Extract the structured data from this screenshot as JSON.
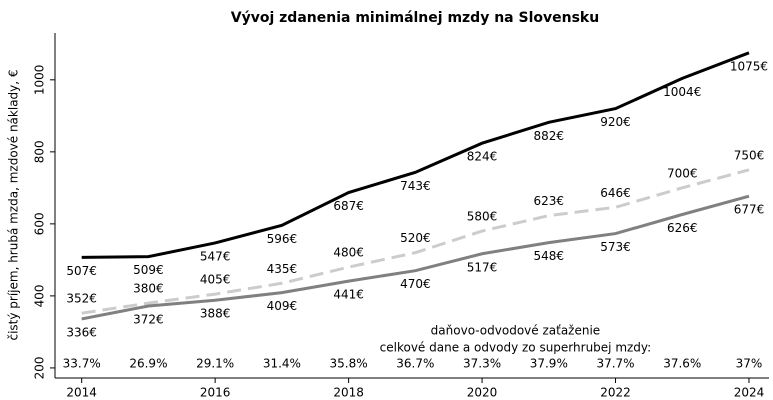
{
  "chart_data": {
    "type": "line",
    "title": "Vývoj zdanenia minimálnej mzdy na Slovensku",
    "y_label": "čistý príjem, hrubá mzda, mzdové náklady, €",
    "x": [
      2014,
      2015,
      2016,
      2017,
      2018,
      2019,
      2020,
      2021,
      2022,
      2023,
      2024
    ],
    "xlim": [
      2013.6,
      2024.3
    ],
    "xticks": [
      2014,
      2016,
      2018,
      2020,
      2022,
      2024
    ],
    "ylim": [
      172,
      1130
    ],
    "yticks": [
      200,
      400,
      600,
      800,
      1000
    ],
    "series": [
      {
        "color": "#000000",
        "dash": false,
        "label_side": "below",
        "values": [
          507,
          509,
          547,
          596,
          687,
          743,
          824,
          882,
          920,
          1004,
          1075
        ],
        "value_labels": [
          "507€",
          "509€",
          "547€",
          "596€",
          "687€",
          "743€",
          "824€",
          "882€",
          "920€",
          "1004€",
          "1075€"
        ]
      },
      {
        "color": "#cccccc",
        "dash": true,
        "label_side": "above",
        "values": [
          352,
          380,
          405,
          435,
          480,
          520,
          580,
          623,
          646,
          700,
          750
        ],
        "value_labels": [
          "352€",
          "380€",
          "405€",
          "435€",
          "480€",
          "520€",
          "580€",
          "623€",
          "646€",
          "700€",
          "750€"
        ]
      },
      {
        "color": "#808080",
        "dash": false,
        "label_side": "below",
        "values": [
          336,
          372,
          388,
          409,
          441,
          470,
          517,
          548,
          573,
          626,
          677
        ],
        "value_labels": [
          "336€",
          "372€",
          "388€",
          "409€",
          "441€",
          "470€",
          "517€",
          "548€",
          "573€",
          "626€",
          "677€"
        ]
      }
    ],
    "annotation": [
      "daňovo-odvodové zaťaženie",
      "celkové dane a odvody zo superhrubej mzdy:"
    ],
    "tax_burden": {
      "values": [
        33.7,
        26.9,
        29.1,
        31.4,
        35.8,
        36.7,
        37.3,
        37.9,
        37.7,
        37.6,
        37
      ],
      "value_labels": [
        "33.7%",
        "26.9%",
        "29.1%",
        "31.4%",
        "35.8%",
        "36.7%",
        "37.3%",
        "37.9%",
        "37.7%",
        "37.6%",
        "37%"
      ]
    }
  }
}
